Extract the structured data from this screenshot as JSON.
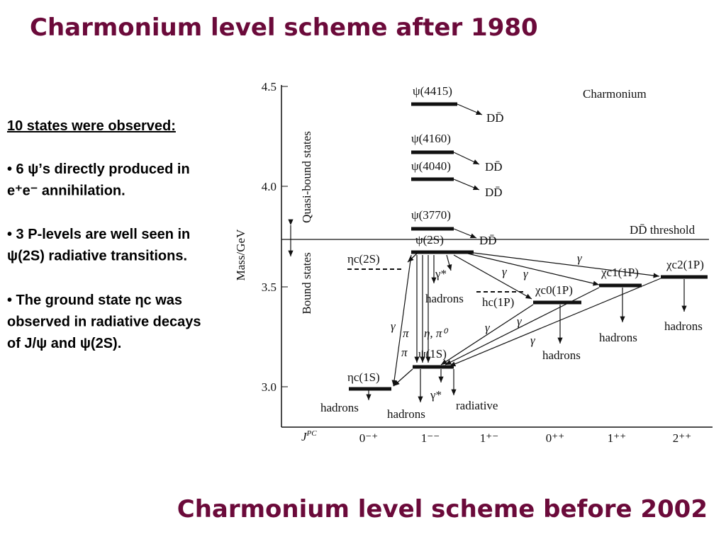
{
  "slide": {
    "title": "Charmonium level scheme after 1980",
    "bottom_title": "Charmonium level scheme before 2002",
    "intro": "10 states were observed:",
    "bullets": [
      [
        "• 6 ψ’s directly produced in",
        "e⁺e⁻ annihilation."
      ],
      [
        "• 3 P-levels are well seen in",
        "ψ(2S) radiative transitions."
      ],
      [
        "• The ground state ηc was",
        "observed in radiative decays",
        "of J/ψ and ψ(2S)."
      ]
    ]
  },
  "diagram": {
    "heading": "Charmonium",
    "mass_axis": {
      "title": "Mass/GeV",
      "ticks": [
        "4.5",
        "4.0",
        "3.5",
        "3.0"
      ]
    },
    "regions": [
      "Quasi-bound states",
      "Bound states"
    ],
    "threshold": "DD̄ threshold",
    "jpc_label": "J",
    "jpc_sup": "PC",
    "jpc": [
      "0⁻⁺",
      "1⁻⁻",
      "1⁺⁻",
      "0⁺⁺",
      "1⁺⁺",
      "2⁺⁺"
    ],
    "levels": [
      "ψ(4415)",
      "ψ(4160)",
      "ψ(4040)",
      "ψ(3770)",
      "ψ(2S)",
      "ηc(2S)",
      "hc(1P)",
      "χc0(1P)",
      "χc1(1P)",
      "χc2(1P)",
      "ψ(1S)",
      "ηc(1S)"
    ],
    "decay_labels": [
      "DD̄",
      "DD̄",
      "DD̄",
      "DD̄",
      "hadrons",
      "γ*",
      "hadrons",
      "hadrons",
      "hadrons",
      "hadrons",
      "hadrons",
      "γ*",
      "radiative"
    ],
    "transition_labels": [
      "γ",
      "γ",
      "γ",
      "γ",
      "γ",
      "γ",
      "γ",
      "π",
      "π",
      "η, π⁰"
    ]
  }
}
